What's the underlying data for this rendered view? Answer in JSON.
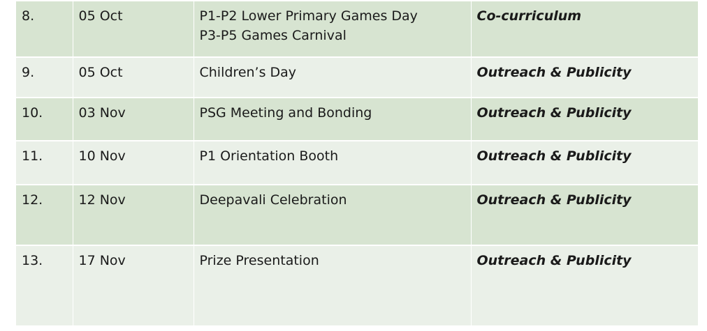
{
  "rows": [
    {
      "no": "8.",
      "date": "05 Oct",
      "event_lines": [
        "P1-P2 Lower Primary Games Day",
        "P3-P5 Games Carnival"
      ],
      "category": "Co-curriculum"
    },
    {
      "no": "9.",
      "date": "05 Oct",
      "event_lines": [
        "Children’s Day"
      ],
      "category": "Outreach & Publicity"
    },
    {
      "no": "10.",
      "date": "03 Nov",
      "event_lines": [
        "PSG Meeting and Bonding"
      ],
      "category": "Outreach & Publicity"
    },
    {
      "no": "11.",
      "date": "10 Nov",
      "event_lines": [
        "P1 Orientation Booth"
      ],
      "category": "Outreach & Publicity"
    },
    {
      "no": "12.",
      "date": "12 Nov",
      "event_lines": [
        "Deepavali Celebration"
      ],
      "category": "Outreach & Publicity"
    },
    {
      "no": "13.",
      "date": "17 Nov",
      "event_lines": [
        "Prize Presentation"
      ],
      "category": "Outreach & Publicity"
    }
  ],
  "colors": {
    "row_dark": "#d7e4d1",
    "row_light": "#eaf0e8",
    "divider": "#ffffff"
  }
}
